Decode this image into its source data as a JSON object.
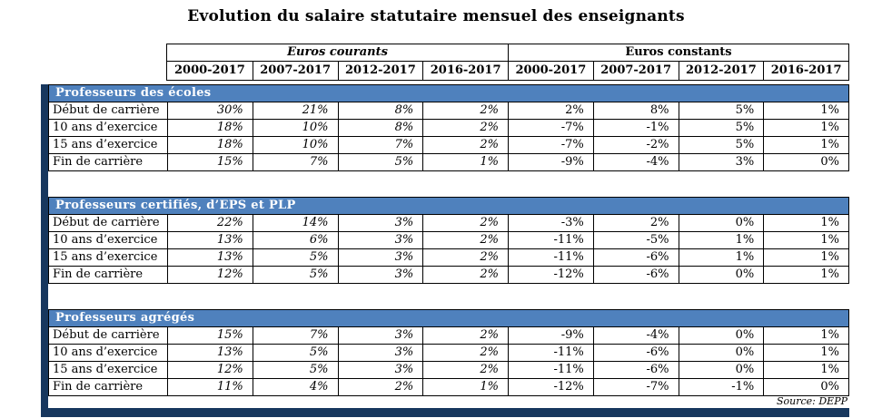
{
  "colors": {
    "section_header_bg": "#4f81bd",
    "section_header_text": "#ffffff",
    "accent_navy": "#17375e",
    "border": "#000000"
  },
  "chart_data": {
    "type": "table",
    "title": "Evolution du salaire statutaire mensuel des enseignants",
    "source": "Source: DEPP",
    "column_groups": [
      "Euros courants",
      "Euros constants"
    ],
    "year_columns": [
      "2000-2017",
      "2007-2017",
      "2012-2017",
      "2016-2017"
    ],
    "sections": [
      {
        "title": "Professeurs  des écoles",
        "rows": [
          {
            "label": "Début de carrière",
            "values": [
              "30%",
              "21%",
              "8%",
              "2%",
              "2%",
              "8%",
              "5%",
              "1%"
            ]
          },
          {
            "label": "10 ans d’exercice",
            "values": [
              "18%",
              "10%",
              "8%",
              "2%",
              "-7%",
              "-1%",
              "5%",
              "1%"
            ]
          },
          {
            "label": "15 ans d’exercice",
            "values": [
              "18%",
              "10%",
              "7%",
              "2%",
              "-7%",
              "-2%",
              "5%",
              "1%"
            ]
          },
          {
            "label": "Fin de carrière",
            "values": [
              "15%",
              "7%",
              "5%",
              "1%",
              "-9%",
              "-4%",
              "3%",
              "0%"
            ]
          }
        ]
      },
      {
        "title": "Professeurs  certifiés,  d’EPS et PLP",
        "rows": [
          {
            "label": "Début de carrière",
            "values": [
              "22%",
              "14%",
              "3%",
              "2%",
              "-3%",
              "2%",
              "0%",
              "1%"
            ]
          },
          {
            "label": "10 ans d’exercice",
            "values": [
              "13%",
              "6%",
              "3%",
              "2%",
              "-11%",
              "-5%",
              "1%",
              "1%"
            ]
          },
          {
            "label": "15 ans d’exercice",
            "values": [
              "13%",
              "5%",
              "3%",
              "2%",
              "-11%",
              "-6%",
              "1%",
              "1%"
            ]
          },
          {
            "label": "Fin de carrière",
            "values": [
              "12%",
              "5%",
              "3%",
              "2%",
              "-12%",
              "-6%",
              "0%",
              "1%"
            ]
          }
        ]
      },
      {
        "title": "Professeurs  agrégés",
        "rows": [
          {
            "label": "Début de carrière",
            "values": [
              "15%",
              "7%",
              "3%",
              "2%",
              "-9%",
              "-4%",
              "0%",
              "1%"
            ]
          },
          {
            "label": "10 ans d’exercice",
            "values": [
              "13%",
              "5%",
              "3%",
              "2%",
              "-11%",
              "-6%",
              "0%",
              "1%"
            ]
          },
          {
            "label": "15 ans d’exercice",
            "values": [
              "12%",
              "5%",
              "3%",
              "2%",
              "-11%",
              "-6%",
              "0%",
              "1%"
            ]
          },
          {
            "label": "Fin de carrière",
            "values": [
              "11%",
              "4%",
              "2%",
              "1%",
              "-12%",
              "-7%",
              "-1%",
              "0%"
            ]
          }
        ]
      }
    ]
  }
}
